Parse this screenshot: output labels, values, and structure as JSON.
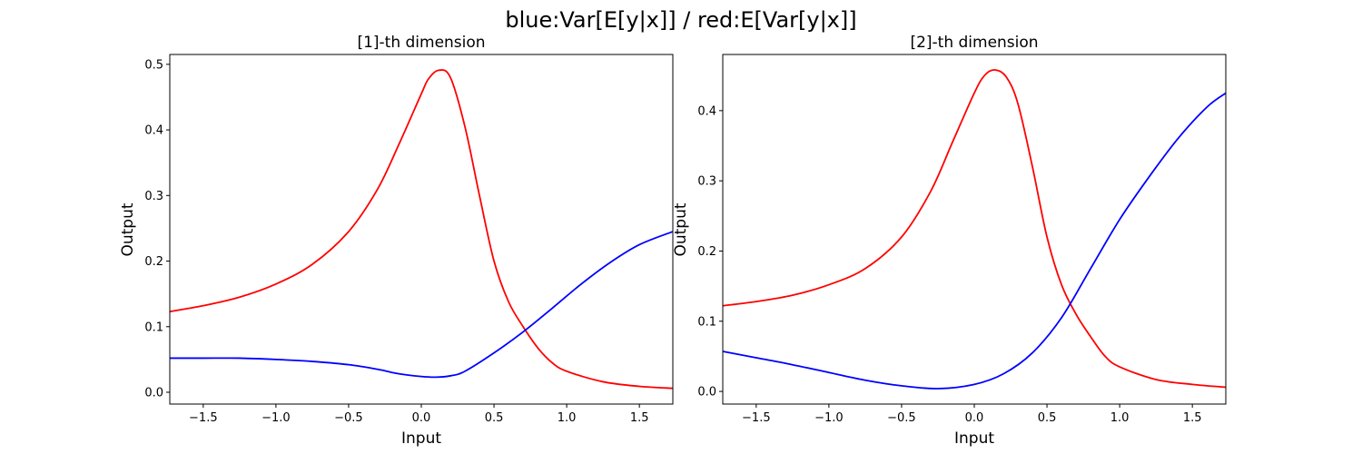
{
  "figure": {
    "suptitle": "blue:Var[E[y|x]] / red:E[Var[y|x]]"
  },
  "chart_data": [
    {
      "type": "line",
      "title": "[1]-th dimension",
      "xlabel": "Input",
      "ylabel": "Output",
      "xlim": [
        -1.73,
        1.73
      ],
      "ylim": [
        -0.018,
        0.515
      ],
      "xticks": [
        -1.5,
        -1.0,
        -0.5,
        0.0,
        0.5,
        1.0,
        1.5
      ],
      "xtick_labels": [
        "−1.5",
        "−1.0",
        "−0.5",
        "0.0",
        "0.5",
        "1.0",
        "1.5"
      ],
      "yticks": [
        0.0,
        0.1,
        0.2,
        0.3,
        0.4,
        0.5
      ],
      "ytick_labels": [
        "0.0",
        "0.1",
        "0.2",
        "0.3",
        "0.4",
        "0.5"
      ],
      "grid": false,
      "series": [
        {
          "color": "#ff0000",
          "x": [
            -1.73,
            -1.5,
            -1.25,
            -1.0,
            -0.75,
            -0.5,
            -0.3,
            -0.15,
            0.0,
            0.05,
            0.12,
            0.2,
            0.3,
            0.4,
            0.5,
            0.6,
            0.7,
            0.8,
            0.9,
            1.0,
            1.25,
            1.5,
            1.73
          ],
          "y": [
            0.123,
            0.132,
            0.145,
            0.165,
            0.195,
            0.245,
            0.31,
            0.38,
            0.455,
            0.478,
            0.491,
            0.48,
            0.405,
            0.3,
            0.2,
            0.138,
            0.1,
            0.068,
            0.045,
            0.032,
            0.016,
            0.009,
            0.006
          ]
        },
        {
          "color": "#0000ff",
          "x": [
            -1.73,
            -1.5,
            -1.25,
            -1.0,
            -0.75,
            -0.5,
            -0.3,
            -0.15,
            0.0,
            0.1,
            0.2,
            0.3,
            0.5,
            0.7,
            0.9,
            1.1,
            1.3,
            1.5,
            1.73
          ],
          "y": [
            0.052,
            0.052,
            0.052,
            0.05,
            0.047,
            0.042,
            0.035,
            0.028,
            0.024,
            0.023,
            0.025,
            0.032,
            0.06,
            0.092,
            0.128,
            0.165,
            0.198,
            0.225,
            0.245
          ]
        }
      ]
    },
    {
      "type": "line",
      "title": "[2]-th dimension",
      "xlabel": "Input",
      "ylabel": "Output",
      "xlim": [
        -1.73,
        1.73
      ],
      "ylim": [
        -0.018,
        0.48
      ],
      "xticks": [
        -1.5,
        -1.0,
        -0.5,
        0.0,
        0.5,
        1.0,
        1.5
      ],
      "xtick_labels": [
        "−1.5",
        "−1.0",
        "−0.5",
        "0.0",
        "0.5",
        "1.0",
        "1.5"
      ],
      "yticks": [
        0.0,
        0.1,
        0.2,
        0.3,
        0.4
      ],
      "ytick_labels": [
        "0.0",
        "0.1",
        "0.2",
        "0.3",
        "0.4"
      ],
      "grid": false,
      "series": [
        {
          "color": "#ff0000",
          "x": [
            -1.73,
            -1.5,
            -1.25,
            -1.0,
            -0.75,
            -0.5,
            -0.3,
            -0.15,
            0.0,
            0.07,
            0.14,
            0.22,
            0.3,
            0.4,
            0.5,
            0.6,
            0.7,
            0.8,
            0.9,
            1.0,
            1.25,
            1.5,
            1.73
          ],
          "y": [
            0.122,
            0.128,
            0.137,
            0.152,
            0.175,
            0.22,
            0.285,
            0.355,
            0.425,
            0.45,
            0.458,
            0.448,
            0.41,
            0.32,
            0.22,
            0.152,
            0.11,
            0.078,
            0.05,
            0.035,
            0.017,
            0.01,
            0.006
          ]
        },
        {
          "color": "#0000ff",
          "x": [
            -1.73,
            -1.5,
            -1.25,
            -1.0,
            -0.75,
            -0.5,
            -0.25,
            0.0,
            0.2,
            0.4,
            0.6,
            0.8,
            1.0,
            1.2,
            1.4,
            1.6,
            1.73
          ],
          "y": [
            0.057,
            0.048,
            0.038,
            0.027,
            0.016,
            0.008,
            0.004,
            0.01,
            0.025,
            0.055,
            0.105,
            0.175,
            0.245,
            0.305,
            0.36,
            0.405,
            0.425
          ]
        }
      ]
    }
  ]
}
